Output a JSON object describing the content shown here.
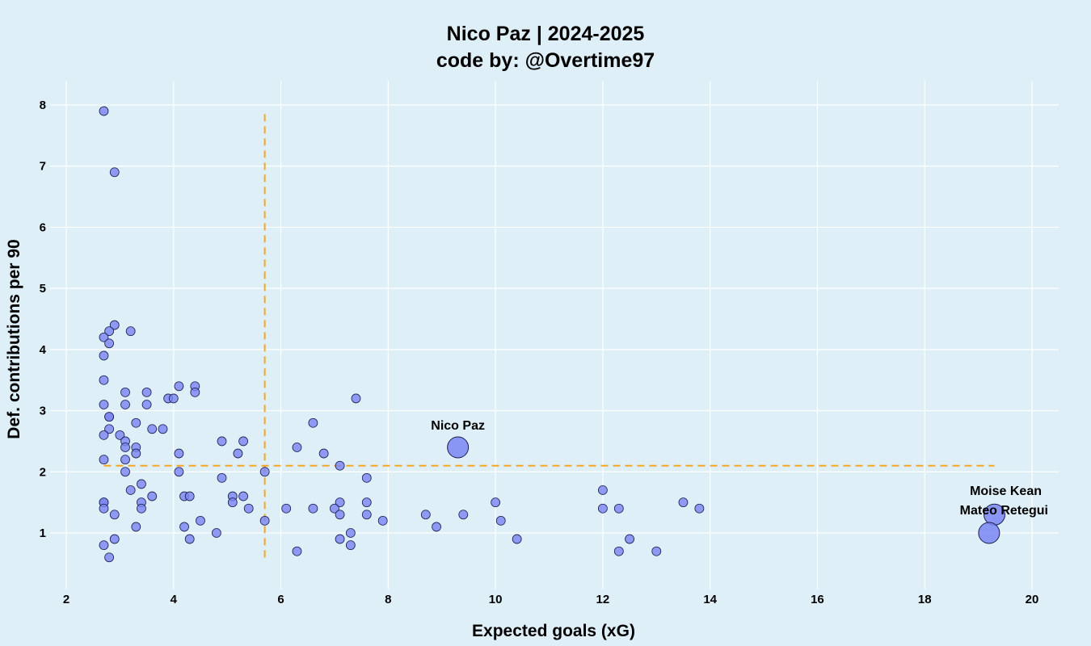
{
  "chart_data": {
    "type": "scatter",
    "title": "Nico Paz | 2024-2025",
    "subtitle": "code by: @Overtime97",
    "xlabel": "Expected goals (xG)",
    "ylabel": "Def. contributions per 90",
    "xlim": [
      1.6,
      20.5
    ],
    "ylim": [
      0.1,
      8.4
    ],
    "x_ticks": [
      2,
      4,
      6,
      8,
      10,
      12,
      14,
      16,
      18,
      20
    ],
    "y_ticks": [
      1,
      2,
      3,
      4,
      5,
      6,
      7,
      8
    ],
    "grid": true,
    "reference_lines": {
      "x_mean": 5.7,
      "y_mean": 2.1
    },
    "colors": {
      "point": "#7b86f2",
      "reference": "#f5a623",
      "background": "#deeff8"
    },
    "highlighted": [
      {
        "name": "Nico Paz",
        "x": 9.3,
        "y": 2.4
      },
      {
        "name": "Moise Kean",
        "x": 19.3,
        "y": 1.3
      },
      {
        "name": "Mateo Retegui",
        "x": 19.2,
        "y": 1.0
      }
    ],
    "points": [
      [
        2.7,
        7.9
      ],
      [
        2.9,
        6.9
      ],
      [
        2.9,
        4.4
      ],
      [
        2.8,
        4.3
      ],
      [
        3.2,
        4.3
      ],
      [
        2.7,
        4.2
      ],
      [
        2.8,
        4.1
      ],
      [
        2.7,
        3.9
      ],
      [
        2.7,
        3.5
      ],
      [
        4.1,
        3.4
      ],
      [
        4.4,
        3.4
      ],
      [
        3.1,
        3.3
      ],
      [
        3.5,
        3.3
      ],
      [
        4.4,
        3.3
      ],
      [
        3.9,
        3.2
      ],
      [
        4.0,
        3.2
      ],
      [
        7.4,
        3.2
      ],
      [
        2.7,
        3.1
      ],
      [
        3.1,
        3.1
      ],
      [
        3.5,
        3.1
      ],
      [
        2.8,
        2.9
      ],
      [
        2.8,
        2.9
      ],
      [
        3.3,
        2.8
      ],
      [
        6.6,
        2.8
      ],
      [
        2.8,
        2.7
      ],
      [
        3.6,
        2.7
      ],
      [
        3.8,
        2.7
      ],
      [
        2.7,
        2.6
      ],
      [
        3.0,
        2.6
      ],
      [
        3.1,
        2.5
      ],
      [
        4.9,
        2.5
      ],
      [
        5.3,
        2.5
      ],
      [
        3.1,
        2.4
      ],
      [
        3.3,
        2.4
      ],
      [
        6.3,
        2.4
      ],
      [
        3.3,
        2.3
      ],
      [
        4.1,
        2.3
      ],
      [
        5.2,
        2.3
      ],
      [
        6.8,
        2.3
      ],
      [
        2.7,
        2.2
      ],
      [
        3.1,
        2.2
      ],
      [
        7.1,
        2.1
      ],
      [
        3.1,
        2.0
      ],
      [
        4.1,
        2.0
      ],
      [
        5.7,
        2.0
      ],
      [
        3.4,
        1.8
      ],
      [
        4.9,
        1.9
      ],
      [
        7.6,
        1.9
      ],
      [
        3.2,
        1.7
      ],
      [
        3.6,
        1.6
      ],
      [
        4.2,
        1.6
      ],
      [
        4.3,
        1.6
      ],
      [
        5.1,
        1.6
      ],
      [
        5.3,
        1.6
      ],
      [
        2.7,
        1.5
      ],
      [
        2.7,
        1.5
      ],
      [
        3.4,
        1.5
      ],
      [
        5.1,
        1.5
      ],
      [
        7.1,
        1.5
      ],
      [
        7.6,
        1.5
      ],
      [
        10.0,
        1.5
      ],
      [
        13.5,
        1.5
      ],
      [
        2.7,
        1.4
      ],
      [
        3.4,
        1.4
      ],
      [
        5.4,
        1.4
      ],
      [
        6.1,
        1.4
      ],
      [
        6.6,
        1.4
      ],
      [
        7.0,
        1.4
      ],
      [
        12.0,
        1.4
      ],
      [
        12.3,
        1.4
      ],
      [
        13.8,
        1.4
      ],
      [
        2.9,
        1.3
      ],
      [
        7.1,
        1.3
      ],
      [
        7.6,
        1.3
      ],
      [
        8.7,
        1.3
      ],
      [
        9.4,
        1.3
      ],
      [
        12.0,
        1.7
      ],
      [
        4.5,
        1.2
      ],
      [
        5.7,
        1.2
      ],
      [
        7.9,
        1.2
      ],
      [
        10.1,
        1.2
      ],
      [
        3.3,
        1.1
      ],
      [
        4.2,
        1.1
      ],
      [
        8.9,
        1.1
      ],
      [
        4.8,
        1.0
      ],
      [
        7.3,
        1.0
      ],
      [
        2.9,
        0.9
      ],
      [
        4.3,
        0.9
      ],
      [
        7.1,
        0.9
      ],
      [
        10.4,
        0.9
      ],
      [
        12.5,
        0.9
      ],
      [
        2.7,
        0.8
      ],
      [
        7.3,
        0.8
      ],
      [
        6.3,
        0.7
      ],
      [
        12.3,
        0.7
      ],
      [
        13.0,
        0.7
      ],
      [
        2.8,
        0.6
      ]
    ]
  }
}
